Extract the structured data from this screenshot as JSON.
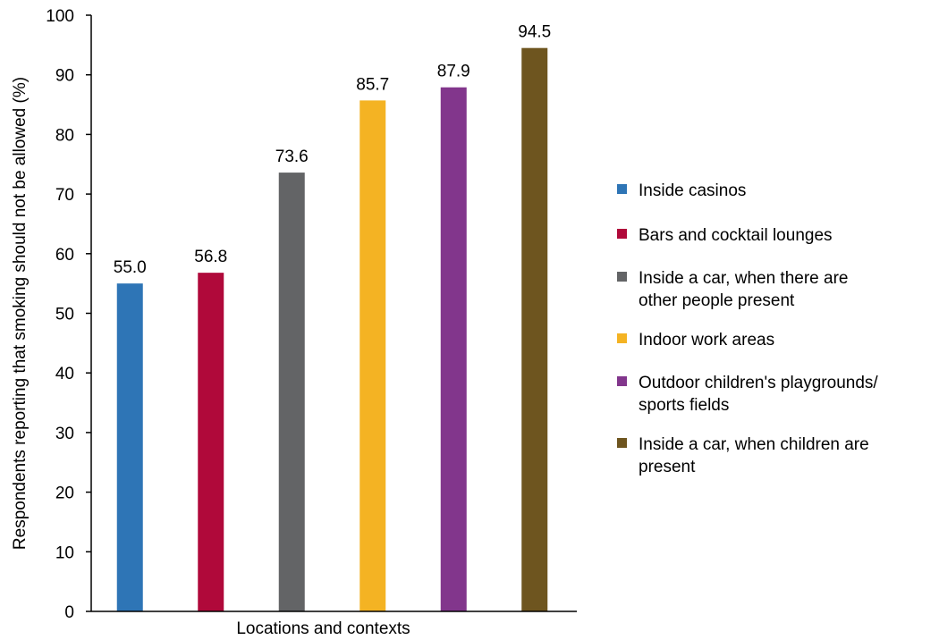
{
  "chart_data": {
    "type": "bar",
    "title": "",
    "xlabel": "Locations and contexts",
    "ylabel": "Respondents reporting that smoking should not be allowed (%)",
    "ylim": [
      0,
      100
    ],
    "yticks": [
      "0",
      "10",
      "20",
      "30",
      "40",
      "50",
      "60",
      "70",
      "80",
      "90",
      "100"
    ],
    "grid": false,
    "legend_position": "right",
    "categories": [
      "Inside casinos",
      "Bars and cocktail lounges",
      "Inside a car, when there are other people present",
      "Indoor work areas",
      "Outdoor children's playgrounds/ sports fields",
      "Inside a car, when children are present"
    ],
    "values": [
      55.0,
      56.8,
      73.6,
      85.7,
      87.9,
      94.5
    ],
    "value_labels": [
      "55.0",
      "56.8",
      "73.6",
      "85.7",
      "87.9",
      "94.5"
    ],
    "colors": [
      "#2e75b6",
      "#b0093a",
      "#636466",
      "#f4b323",
      "#82368c",
      "#6e551f"
    ],
    "legend": [
      {
        "lines": [
          "Inside casinos"
        ],
        "color": "#2e75b6"
      },
      {
        "lines": [
          "Bars and cocktail lounges"
        ],
        "color": "#b0093a"
      },
      {
        "lines": [
          "Inside a car, when there are",
          "other people present"
        ],
        "color": "#636466"
      },
      {
        "lines": [
          "Indoor work areas"
        ],
        "color": "#f4b323"
      },
      {
        "lines": [
          "Outdoor children's playgrounds/",
          "sports fields"
        ],
        "color": "#82368c"
      },
      {
        "lines": [
          "Inside a car, when children are",
          "present"
        ],
        "color": "#6e551f"
      }
    ]
  }
}
